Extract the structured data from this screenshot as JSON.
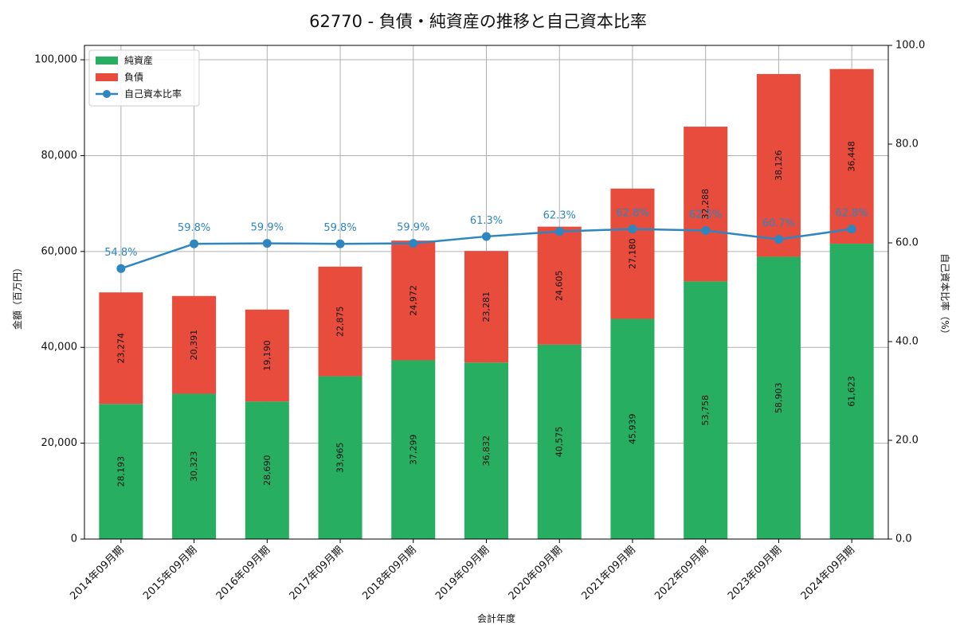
{
  "chart_data": {
    "type": "bar",
    "title": "62770 - 負債・純資産の推移と自己資本比率",
    "xlabel": "会計年度",
    "ylabel": "金額（百万円）",
    "y2label": "自己資本比率（%）",
    "categories": [
      "2014年09月期",
      "2015年09月期",
      "2016年09月期",
      "2017年09月期",
      "2018年09月期",
      "2019年09月期",
      "2020年09月期",
      "2021年09月期",
      "2022年09月期",
      "2023年09月期",
      "2024年09月期"
    ],
    "series": [
      {
        "name": "純資産",
        "kind": "bar",
        "stack": "s",
        "color": "#27ae60",
        "values": [
          28193,
          30323,
          28690,
          33965,
          37299,
          36832,
          40575,
          45939,
          53758,
          58903,
          61623
        ],
        "labels": [
          "28,193",
          "30,323",
          "28,690",
          "33,965",
          "37,299",
          "36,832",
          "40,575",
          "45,939",
          "53,758",
          "58,903",
          "61,623"
        ]
      },
      {
        "name": "負債",
        "kind": "bar",
        "stack": "s",
        "color": "#e74c3c",
        "values": [
          23274,
          20391,
          19190,
          22875,
          24972,
          23281,
          24605,
          27180,
          32288,
          38126,
          36448
        ],
        "labels": [
          "23,274",
          "20,391",
          "19,190",
          "22,875",
          "24,972",
          "23,281",
          "24,605",
          "27,180",
          "32,288",
          "38,126",
          "36,448"
        ]
      },
      {
        "name": "自己資本比率",
        "kind": "line",
        "axis": "right",
        "color": "#2e86c1",
        "values": [
          54.8,
          59.8,
          59.9,
          59.8,
          59.9,
          61.3,
          62.3,
          62.8,
          62.5,
          60.7,
          62.8
        ],
        "labels": [
          "54.8%",
          "59.8%",
          "59.9%",
          "59.8%",
          "59.9%",
          "61.3%",
          "62.3%",
          "62.8%",
          "62.5%",
          "60.7%",
          "62.8%"
        ]
      }
    ],
    "ylim": [
      0,
      103000
    ],
    "y2lim": [
      0,
      100
    ],
    "yticks": [
      0,
      20000,
      40000,
      60000,
      80000,
      100000
    ],
    "ytick_labels": [
      "0",
      "20,000",
      "40,000",
      "60,000",
      "80,000",
      "100,000"
    ],
    "y2ticks": [
      0,
      20,
      40,
      60,
      80,
      100
    ],
    "y2tick_labels": [
      "0.0",
      "20.0",
      "40.0",
      "60.0",
      "80.0",
      "100.0"
    ],
    "grid": true,
    "legend_position": "top-left"
  }
}
